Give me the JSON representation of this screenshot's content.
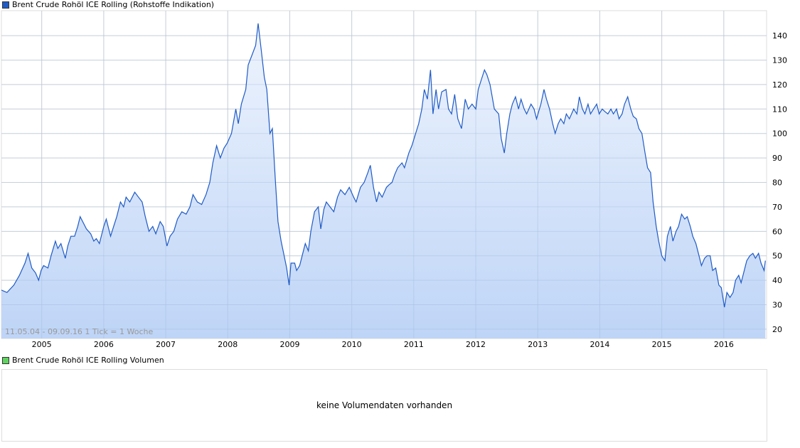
{
  "colors": {
    "line": "#1f5bc6",
    "fill_top": "#edf3fd",
    "fill_bottom": "#b9d1f6",
    "grid": "#dcdcdc",
    "legend_price": "#1f5bc6",
    "legend_volume": "#5fd35f"
  },
  "legend": {
    "price": "Brent Crude Rohöl ICE Rolling (Rohstoffe Indikation)",
    "volume": "Brent Crude Rohöl ICE Rolling Volumen"
  },
  "info": "11.05.04 - 09.09.16   1 Tick = 1 Woche",
  "volume_message": "keine Volumendaten vorhanden",
  "chart_data": {
    "type": "area",
    "title": "Brent Crude Rohöl ICE Rolling (Rohstoffe Indikation)",
    "xlabel": "",
    "ylabel": "",
    "xlim": [
      2004.35,
      2016.69
    ],
    "ylim": [
      16.2,
      150.2
    ],
    "grid": true,
    "x_ticks": [
      2005,
      2006,
      2007,
      2008,
      2009,
      2010,
      2011,
      2012,
      2013,
      2014,
      2015,
      2016
    ],
    "x_tick_labels": [
      "2005",
      "2006",
      "2007",
      "2008",
      "2009",
      "2010",
      "2011",
      "2012",
      "2013",
      "2014",
      "2015",
      "2016"
    ],
    "y_ticks": [
      20,
      30,
      40,
      50,
      60,
      70,
      80,
      90,
      100,
      110,
      120,
      130,
      140
    ],
    "y_tick_labels": [
      "20",
      "30",
      "40",
      "50",
      "60",
      "70",
      "80",
      "90",
      "100",
      "110",
      "120",
      "130",
      "140"
    ],
    "x": [
      2004.35,
      2004.44,
      2004.55,
      2004.64,
      2004.73,
      2004.78,
      2004.84,
      2004.9,
      2004.95,
      2004.99,
      2005.03,
      2005.1,
      2005.15,
      2005.22,
      2005.26,
      2005.31,
      2005.38,
      2005.42,
      2005.47,
      2005.53,
      2005.58,
      2005.62,
      2005.68,
      2005.72,
      2005.79,
      2005.84,
      2005.88,
      2005.93,
      2006.0,
      2006.04,
      2006.11,
      2006.16,
      2006.21,
      2006.27,
      2006.32,
      2006.36,
      2006.42,
      2006.5,
      2006.56,
      2006.62,
      2006.67,
      2006.73,
      2006.79,
      2006.84,
      2006.91,
      2006.96,
      2007.02,
      2007.07,
      2007.13,
      2007.19,
      2007.26,
      2007.33,
      2007.39,
      2007.44,
      2007.51,
      2007.58,
      2007.65,
      2007.71,
      2007.76,
      2007.82,
      2007.88,
      2007.94,
      2007.99,
      2008.06,
      2008.13,
      2008.17,
      2008.22,
      2008.29,
      2008.33,
      2008.39,
      2008.45,
      2008.49,
      2008.54,
      2008.59,
      2008.63,
      2008.68,
      2008.72,
      2008.77,
      2008.81,
      2008.86,
      2008.91,
      2008.95,
      2008.99,
      2009.02,
      2009.08,
      2009.11,
      2009.16,
      2009.2,
      2009.25,
      2009.3,
      2009.34,
      2009.4,
      2009.46,
      2009.5,
      2009.55,
      2009.59,
      2009.65,
      2009.71,
      2009.77,
      2009.82,
      2009.89,
      2009.96,
      2010.03,
      2010.07,
      2010.14,
      2010.2,
      2010.26,
      2010.3,
      2010.35,
      2010.4,
      2010.44,
      2010.49,
      2010.56,
      2010.6,
      2010.65,
      2010.69,
      2010.74,
      2010.81,
      2010.85,
      2010.92,
      2010.97,
      2011.03,
      2011.08,
      2011.13,
      2011.17,
      2011.22,
      2011.27,
      2011.31,
      2011.36,
      2011.4,
      2011.45,
      2011.52,
      2011.56,
      2011.61,
      2011.66,
      2011.71,
      2011.77,
      2011.83,
      2011.88,
      2011.94,
      2012.0,
      2012.04,
      2012.09,
      2012.14,
      2012.18,
      2012.23,
      2012.3,
      2012.37,
      2012.41,
      2012.46,
      2012.5,
      2012.55,
      2012.59,
      2012.64,
      2012.69,
      2012.73,
      2012.78,
      2012.82,
      2012.89,
      2012.94,
      2012.98,
      2013.05,
      2013.1,
      2013.14,
      2013.19,
      2013.24,
      2013.28,
      2013.33,
      2013.37,
      2013.42,
      2013.46,
      2013.51,
      2013.58,
      2013.63,
      2013.67,
      2013.72,
      2013.76,
      2013.81,
      2013.85,
      2013.9,
      2013.95,
      2013.99,
      2014.04,
      2014.08,
      2014.13,
      2014.18,
      2014.22,
      2014.27,
      2014.31,
      2014.36,
      2014.4,
      2014.45,
      2014.5,
      2014.54,
      2014.59,
      2014.63,
      2014.68,
      2014.73,
      2014.77,
      2014.82,
      2014.86,
      2014.91,
      2014.95,
      2015.0,
      2015.05,
      2015.09,
      2015.14,
      2015.18,
      2015.23,
      2015.27,
      2015.32,
      2015.37,
      2015.41,
      2015.46,
      2015.5,
      2015.55,
      2015.6,
      2015.64,
      2015.69,
      2015.73,
      2015.78,
      2015.82,
      2015.87,
      2015.92,
      2015.96,
      2016.01,
      2016.05,
      2016.1,
      2016.15,
      2016.19,
      2016.24,
      2016.28,
      2016.33,
      2016.37,
      2016.42,
      2016.47,
      2016.51,
      2016.56,
      2016.6,
      2016.65,
      2016.67
    ],
    "y": [
      36,
      35,
      38,
      42,
      47,
      51,
      45,
      43,
      40,
      44,
      46,
      45,
      50,
      56,
      53,
      55,
      49,
      54,
      58,
      58,
      62,
      66,
      63,
      61,
      59,
      56,
      57,
      55,
      62,
      65,
      58,
      62,
      66,
      72,
      70,
      74,
      72,
      76,
      74,
      72,
      66,
      60,
      62,
      59,
      64,
      62,
      54,
      58,
      60,
      65,
      68,
      67,
      70,
      75,
      72,
      71,
      75,
      80,
      88,
      95,
      90,
      94,
      96,
      100,
      110,
      104,
      112,
      118,
      128,
      132,
      136,
      145,
      134,
      123,
      118,
      100,
      102,
      80,
      64,
      56,
      50,
      45,
      38,
      47,
      47,
      44,
      46,
      50,
      55,
      52,
      60,
      68,
      70,
      61,
      69,
      72,
      70,
      68,
      74,
      77,
      75,
      78,
      74,
      72,
      78,
      80,
      84,
      87,
      78,
      72,
      76,
      74,
      78,
      79,
      80,
      83,
      86,
      88,
      86,
      92,
      95,
      100,
      104,
      110,
      118,
      114,
      126,
      108,
      118,
      110,
      117,
      118,
      110,
      108,
      116,
      106,
      102,
      114,
      110,
      112,
      110,
      118,
      122,
      126,
      124,
      120,
      110,
      108,
      98,
      92,
      100,
      108,
      112,
      115,
      110,
      114,
      110,
      108,
      112,
      110,
      106,
      112,
      118,
      114,
      110,
      104,
      100,
      104,
      106,
      104,
      108,
      106,
      110,
      108,
      115,
      110,
      108,
      112,
      108,
      110,
      112,
      108,
      110,
      109,
      108,
      110,
      108,
      110,
      106,
      108,
      112,
      115,
      110,
      107,
      106,
      102,
      100,
      92,
      86,
      84,
      72,
      62,
      56,
      50,
      48,
      58,
      62,
      56,
      60,
      62,
      67,
      65,
      66,
      62,
      58,
      55,
      50,
      46,
      49,
      50,
      50,
      44,
      45,
      38,
      37,
      29,
      35,
      33,
      35,
      40,
      42,
      39,
      44,
      48,
      50,
      51,
      49,
      51,
      47,
      44,
      48
    ]
  }
}
